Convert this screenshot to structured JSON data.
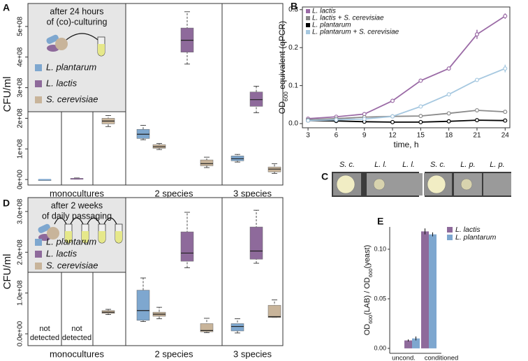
{
  "figure": {
    "panel_letters": [
      "A",
      "B",
      "C",
      "D",
      "E"
    ],
    "plate_labels": [
      [
        "S. c.",
        "L. l.",
        "L. l."
      ],
      [
        "S. c.",
        "L. p.",
        "L. p."
      ]
    ]
  },
  "chart_data": [
    {
      "type": "box",
      "inset_title": [
        "after 24 hours",
        "of (co)-culturing"
      ],
      "ylabel": "CFU/ml",
      "groups": [
        "monocultures",
        "2 species",
        "3 species"
      ],
      "categories": [
        null,
        null,
        null,
        null,
        null,
        null
      ],
      "ylim": [
        -18000000.0,
        575000000.0
      ],
      "yticks": [
        {
          "value": 0,
          "label": "0e+00"
        },
        {
          "value": 100000000.0,
          "label": "1e+08"
        },
        {
          "value": 200000000.0,
          "label": "2e+08"
        },
        {
          "value": 300000000.0,
          "label": "3e+08"
        },
        {
          "value": 400000000.0,
          "label": "4e+08"
        },
        {
          "value": 500000000.0,
          "label": "5e+08"
        }
      ],
      "series": [
        {
          "name": "L. plantarum",
          "color": "#7ea7cf",
          "values": [
            {
              "low": 0,
              "q1": 0,
              "median": 0,
              "q3": 0,
              "high": 0
            },
            null,
            null,
            {
              "low": 130000000.0,
              "q1": 134000000.0,
              "median": 148000000.0,
              "q3": 164000000.0,
              "high": 177000000.0
            },
            null,
            {
              "low": 57000000.0,
              "q1": 61000000.0,
              "median": 68000000.0,
              "q3": 77000000.0,
              "high": 82000000.0
            }
          ]
        },
        {
          "name": "L. lactis",
          "color": "#8e6a9b",
          "values": [
            null,
            {
              "low": 1000000.0,
              "q1": 1500000.0,
              "median": 2000000.0,
              "q3": 4000000.0,
              "high": 5000000.0
            },
            null,
            null,
            {
              "low": 377000000.0,
              "q1": 416000000.0,
              "median": 455000000.0,
              "q3": 495000000.0,
              "high": 548000000.0
            },
            {
              "low": 218000000.0,
              "q1": 239000000.0,
              "median": 261000000.0,
              "q3": 286000000.0,
              "high": 305000000.0
            }
          ]
        },
        {
          "name": "S. cerevisiae",
          "color": "#c8b49a",
          "values": [
            null,
            null,
            {
              "low": 173000000.0,
              "q1": 182000000.0,
              "median": 191000000.0,
              "q3": 200000000.0,
              "high": 209000000.0
            },
            {
              "low": 98000000.0,
              "q1": 102000000.0,
              "median": 107000000.0,
              "q3": 114000000.0,
              "high": 118000000.0
            },
            {
              "low": 39000000.0,
              "q1": 45000000.0,
              "median": 52000000.0,
              "q3": 64000000.0,
              "high": 73000000.0
            },
            {
              "low": 20000000.0,
              "q1": 25000000.0,
              "median": 34000000.0,
              "q3": 41000000.0,
              "high": 52000000.0
            }
          ]
        }
      ]
    },
    {
      "type": "line",
      "ylabel": [
        {
          "text": "OD"
        },
        {
          "text": "600",
          "sub": true
        },
        {
          "text": " equivalent (qPCR)"
        }
      ],
      "xlabel": "time, h",
      "x": [
        3,
        6,
        9,
        12,
        15,
        18,
        21,
        24
      ],
      "xlim": [
        2.4,
        24.5
      ],
      "xticks": [
        3,
        6,
        9,
        12,
        15,
        18,
        21,
        24
      ],
      "ylim": [
        -0.011,
        0.307
      ],
      "yticks": [
        {
          "value": 0,
          "label": "0.0"
        },
        0.1,
        0.2,
        0.3
      ],
      "legend": "top-left",
      "series": [
        {
          "name": "L. lactis",
          "color": "#9b6ba6",
          "values": [
            0.013,
            0.018,
            0.025,
            0.06,
            0.113,
            0.145,
            0.235,
            0.283
          ],
          "errors": [
            null,
            null,
            null,
            null,
            0.005,
            0.004,
            0.012,
            0.007
          ]
        },
        {
          "name": "L. lactis + S. cerevisiae",
          "color": "#8a8a8a",
          "values": [
            0.01,
            0.013,
            0.017,
            0.019,
            0.02,
            0.027,
            0.035,
            0.031
          ]
        },
        {
          "name": "L. plantarum",
          "color": "#000000",
          "values": [
            0.008,
            0.007,
            0.005,
            0.004,
            0.004,
            0.006,
            0.009,
            0.008
          ]
        },
        {
          "name": "L. plantarum + S. cerevisiae",
          "color": "#a6c8e0",
          "values": [
            0.008,
            0.01,
            0.012,
            0.019,
            0.045,
            0.077,
            0.115,
            0.145
          ],
          "errors": [
            null,
            null,
            null,
            null,
            0.003,
            0.003,
            0.004,
            0.01
          ]
        }
      ]
    },
    {
      "type": "box",
      "inset_title": [
        "after 2 weeks",
        "of daily passaging"
      ],
      "ylabel": "CFU/ml",
      "groups": [
        "monocultures",
        "2 species",
        "3 species"
      ],
      "categories": [
        null,
        null,
        null,
        null,
        null,
        null
      ],
      "annotations": [
        [
          "not",
          "detected"
        ],
        [
          "not",
          "detected"
        ],
        null,
        null,
        null,
        null
      ],
      "ylim": [
        -29000000.0,
        334000000.0
      ],
      "yticks": [
        {
          "value": 0,
          "label": "0.0e+00"
        },
        {
          "value": 100000000.0,
          "label": "1.0e+08"
        },
        {
          "value": 200000000.0,
          "label": "2.0e+08"
        },
        {
          "value": 300000000.0,
          "label": "3.0e+08"
        }
      ],
      "series": [
        {
          "name": "L. plantarum",
          "color": "#7ea7cf",
          "values": [
            null,
            null,
            null,
            {
              "low": 30000000.0,
              "q1": 33000000.0,
              "median": 57000000.0,
              "q3": 107000000.0,
              "high": 137000000.0
            },
            null,
            {
              "low": 2000000.0,
              "q1": 7000000.0,
              "median": 18000000.0,
              "q3": 25000000.0,
              "high": 37000000.0
            }
          ]
        },
        {
          "name": "L. lactis",
          "color": "#8e6a9b",
          "values": [
            null,
            null,
            null,
            null,
            {
              "low": 162000000.0,
              "q1": 178000000.0,
              "median": 198000000.0,
              "q3": 250000000.0,
              "high": 298000000.0
            },
            {
              "low": 173000000.0,
              "q1": 183000000.0,
              "median": 203000000.0,
              "q3": 262000000.0,
              "high": 303000000.0
            }
          ]
        },
        {
          "name": "S. cerevisiae",
          "color": "#c8b49a",
          "values": [
            null,
            null,
            {
              "low": 47000000.0,
              "q1": 50000000.0,
              "median": 53000000.0,
              "q3": 57000000.0,
              "high": 60000000.0
            },
            {
              "low": 37000000.0,
              "q1": 43000000.0,
              "median": 48000000.0,
              "q3": 53000000.0,
              "high": 65000000.0
            },
            {
              "low": 3000000.0,
              "q1": 5000000.0,
              "median": 8000000.0,
              "q3": 25000000.0,
              "high": 38000000.0
            },
            {
              "low": 40000000.0,
              "q1": 40000000.0,
              "median": 42000000.0,
              "q3": 70000000.0,
              "high": 83000000.0
            }
          ]
        }
      ]
    },
    {
      "type": "bar",
      "ylabel": [
        {
          "text": "OD"
        },
        {
          "text": "600",
          "sub": true
        },
        {
          "text": "(LAB) / OD"
        },
        {
          "text": "600",
          "sub": true
        },
        {
          "text": "(yeast)"
        }
      ],
      "categories": [
        "uncond.",
        "conditioned"
      ],
      "ylim": [
        -0.005,
        0.1225
      ],
      "yticks": [
        {
          "value": 0,
          "label": "0.00"
        },
        {
          "value": 0.05,
          "label": "0.05"
        },
        {
          "value": 0.1,
          "label": "0.10"
        }
      ],
      "legend": "top-right",
      "series": [
        {
          "name": "L. lactis",
          "color": "#8e6a9b",
          "values": [
            0.008,
            0.118
          ],
          "errors": [
            0.001,
            0.003
          ]
        },
        {
          "name": "L. plantarum",
          "color": "#7ea7cf",
          "values": [
            0.01,
            0.115
          ],
          "errors": [
            0.002,
            0.002
          ]
        }
      ]
    }
  ]
}
